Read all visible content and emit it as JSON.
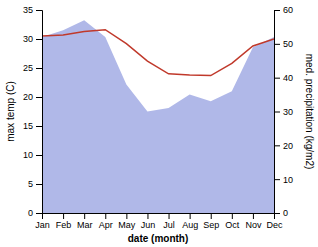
{
  "chart_data": {
    "type": "line",
    "categories": [
      "Jan",
      "Feb",
      "Mar",
      "Apr",
      "May",
      "Jun",
      "Jul",
      "Aug",
      "Sep",
      "Oct",
      "Nov",
      "Dec"
    ],
    "series": [
      {
        "type": "area",
        "axis": "y2",
        "color": "#b0b8e8",
        "values": [
          52.0,
          54.0,
          57.0,
          52.0,
          38.0,
          30.0,
          31.0,
          35.0,
          33.0,
          36.0,
          49.0,
          52.0
        ]
      },
      {
        "type": "line",
        "color": "#c0392b",
        "values": [
          30.5,
          30.7,
          31.3,
          31.6,
          29.2,
          26.2,
          24.0,
          23.8,
          23.7,
          25.8,
          28.8,
          30.0
        ]
      }
    ],
    "xlabel": "date (month)",
    "ylabel": "max temp (C)",
    "y2label": "med. precipitation (kg/m2)",
    "ylim": [
      0,
      35
    ],
    "yticks": [
      0,
      5,
      10,
      15,
      20,
      25,
      30,
      35
    ],
    "y2lim": [
      0,
      60
    ],
    "y2ticks": [
      0,
      10,
      20,
      30,
      40,
      50,
      60
    ],
    "grid": false
  }
}
